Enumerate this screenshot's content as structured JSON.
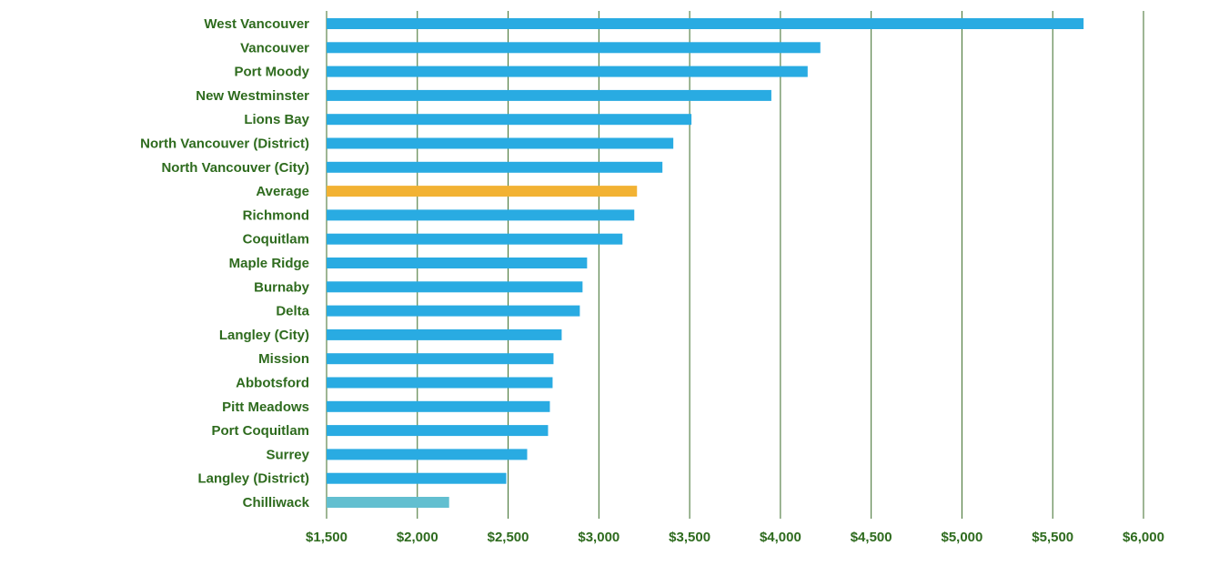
{
  "chart_data": {
    "type": "bar",
    "orientation": "horizontal",
    "title": "",
    "xlabel": "",
    "ylabel": "",
    "categories": [
      "West Vancouver",
      "Vancouver",
      "Port Moody",
      "New Westminster",
      "Lions Bay",
      "North Vancouver (District)",
      "North Vancouver (City)",
      "Average",
      "Richmond",
      "Coquitlam",
      "Maple Ridge",
      "Burnaby",
      "Delta",
      "Langley (City)",
      "Mission",
      "Abbotsford",
      "Pitt Meadows",
      "Port Coquitlam",
      "Surrey",
      "Langley (District)",
      "Chilliwack"
    ],
    "values": [
      5670,
      4220,
      4150,
      3950,
      3510,
      3410,
      3350,
      3210,
      3195,
      3130,
      2935,
      2910,
      2895,
      2795,
      2750,
      2745,
      2730,
      2720,
      2605,
      2490,
      2175
    ],
    "xlim": [
      1500,
      6000
    ],
    "xticks": [
      1500,
      2000,
      2500,
      3000,
      3500,
      4000,
      4500,
      5000,
      5500,
      6000
    ],
    "xtick_labels": [
      "$1,500",
      "$2,000",
      "$2,500",
      "$3,000",
      "$3,500",
      "$4,000",
      "$4,500",
      "$5,000",
      "$5,500",
      "$6,000"
    ],
    "grid": "vertical",
    "legend": "none",
    "colors": {
      "bar": "#29ABE2",
      "highlight": "#F2B233",
      "last_bar": "#62BFD0",
      "label": "#2E6B1E",
      "grid": "#3C6E2A"
    },
    "highlight_category": "Average",
    "faded_category": "Chilliwack"
  }
}
